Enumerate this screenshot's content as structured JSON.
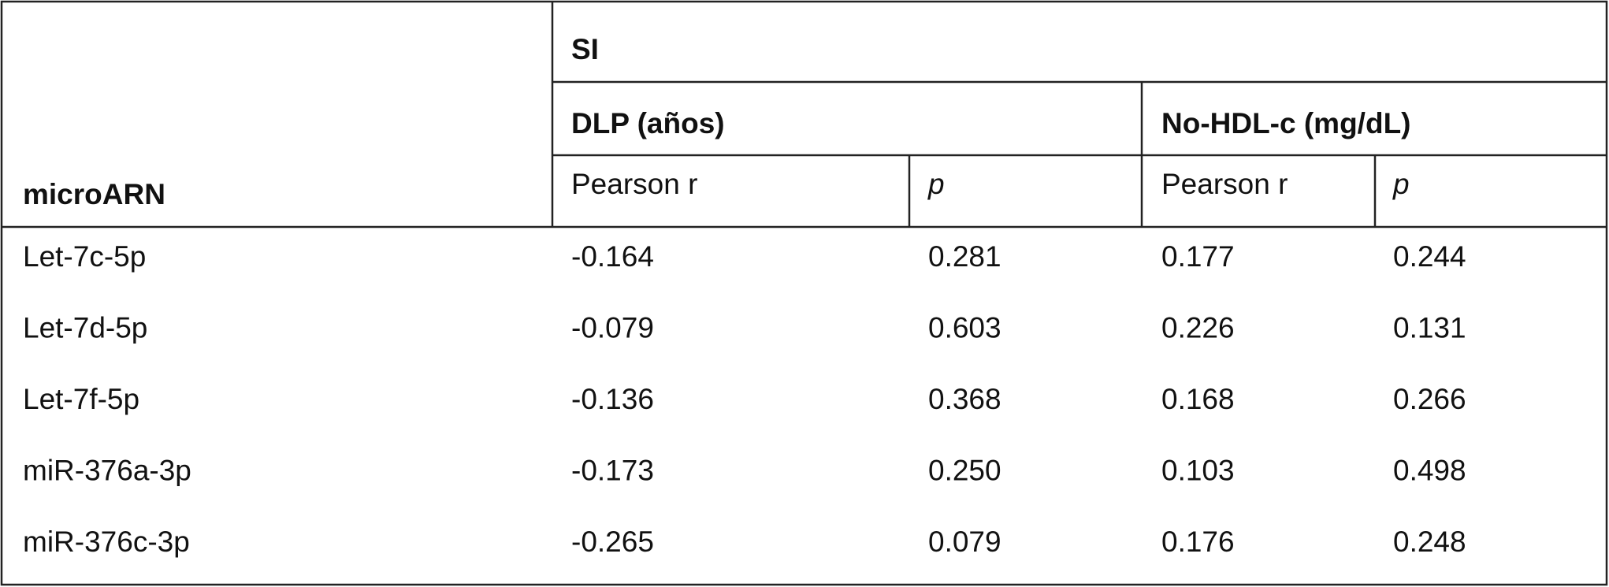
{
  "table": {
    "header": {
      "row_label": "microARN",
      "group": "SI",
      "subgroups": [
        "DLP (años)",
        "No-HDL-c (mg/dL)"
      ],
      "columns": [
        "Pearson r",
        "p",
        "Pearson r",
        "p"
      ]
    },
    "rows": [
      [
        "Let-7c-5p",
        "-0.164",
        "0.281",
        "0.177",
        "0.244"
      ],
      [
        "Let-7d-5p",
        "-0.079",
        "0.603",
        "0.226",
        "0.131"
      ],
      [
        "Let-7f-5p",
        "-0.136",
        "0.368",
        "0.168",
        "0.266"
      ],
      [
        "miR-376a-3p",
        "-0.173",
        "0.250",
        "0.103",
        "0.498"
      ],
      [
        "miR-376c-3p",
        "-0.265",
        "0.079",
        "0.176",
        "0.248"
      ]
    ]
  }
}
